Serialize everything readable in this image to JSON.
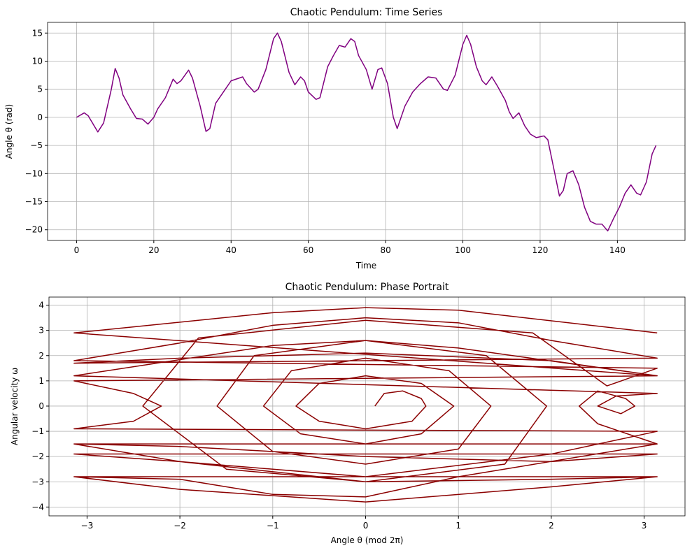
{
  "chart_data": [
    {
      "type": "line",
      "title": "Chaotic Pendulum: Time Series",
      "x_label": "Time",
      "y_label": "Angle θ (rad)",
      "x": [
        0,
        2,
        3,
        5.5,
        7,
        9,
        10,
        11,
        12,
        14,
        15.5,
        17,
        18.5,
        20,
        21,
        23,
        25,
        26,
        27,
        29,
        30,
        32,
        33.5,
        34.5,
        36,
        38,
        40,
        43,
        44,
        46,
        47,
        49,
        51,
        52,
        53,
        55,
        56.5,
        58,
        59,
        60,
        62,
        63,
        65,
        66.5,
        68,
        69.5,
        71,
        72,
        73,
        75,
        76.5,
        78,
        79,
        80.5,
        82,
        83,
        85,
        87,
        89,
        91,
        93,
        95,
        96,
        98,
        100,
        101,
        102,
        103.5,
        105,
        106,
        107.5,
        109,
        111,
        112,
        113,
        114.5,
        116,
        117.5,
        119,
        121,
        122,
        123.5,
        125,
        126,
        127,
        128.5,
        130,
        131.5,
        133,
        134.5,
        136,
        137.5,
        139,
        140.5,
        142,
        143.5,
        145,
        146,
        147.5,
        149,
        150
      ],
      "values": [
        0,
        0.8,
        0.3,
        -2.6,
        -1,
        5,
        8.7,
        7,
        4,
        1.5,
        -0.2,
        -0.3,
        -1.2,
        0,
        1.5,
        3.5,
        6.8,
        6,
        6.5,
        8.4,
        7,
        2,
        -2.5,
        -2,
        2.5,
        4.5,
        6.5,
        7.2,
        6,
        4.5,
        5,
        8.5,
        14,
        15,
        13.5,
        8,
        5.8,
        7.2,
        6.5,
        4.5,
        3.2,
        3.5,
        9,
        11,
        12.8,
        12.5,
        14,
        13.5,
        11,
        8.5,
        5,
        8.5,
        8.8,
        6,
        0,
        -2,
        2,
        4.5,
        6,
        7.2,
        7,
        5,
        4.8,
        7.5,
        13,
        14.6,
        13,
        9,
        6.5,
        5.8,
        7.2,
        5.5,
        3,
        1,
        -0.2,
        0.8,
        -1.5,
        -3,
        -3.6,
        -3.3,
        -4,
        -9,
        -14,
        -13,
        -10,
        -9.5,
        -12,
        -16,
        -18.5,
        -19,
        -19,
        -20.2,
        -18,
        -16,
        -13.5,
        -12,
        -13.5,
        -13.8,
        -11.5,
        -6.5,
        -5
      ],
      "color": "#800080",
      "xlim": [
        -7.5,
        157.5
      ],
      "ylim": [
        -21.9,
        16.9
      ],
      "xticks": [
        0,
        20,
        40,
        60,
        80,
        100,
        120,
        140
      ],
      "yticks": [
        {
          "value": -20,
          "label": "−20"
        },
        {
          "value": -15,
          "label": "−15"
        },
        {
          "value": -10,
          "label": "−10"
        },
        {
          "value": -5,
          "label": "−5"
        },
        0,
        5,
        10,
        15
      ],
      "grid": true
    },
    {
      "type": "line",
      "title": "Chaotic Pendulum: Phase Portrait",
      "x_label": "Angle θ (mod 2π)",
      "y_label": "Angular velocity ω",
      "x": [
        0.1,
        0.2,
        0.4,
        0.6,
        0.65,
        0.5,
        0,
        -0.5,
        -0.75,
        -0.5,
        0,
        0.6,
        0.95,
        0.6,
        0,
        -0.7,
        -1.1,
        -0.8,
        0,
        0.9,
        1.35,
        1,
        0,
        -1,
        -1.6,
        -1.2,
        0,
        1.3,
        1.95,
        1.5,
        0,
        -1.5,
        -2.4,
        -1.8,
        0,
        1.8,
        2.6,
        3.14,
        -3.14,
        -2,
        -1,
        0,
        1,
        2,
        3.14,
        -3.14,
        -2,
        0,
        2,
        3.14,
        -3.14,
        -2.5,
        -2.2,
        -2.5,
        -3.14,
        3.14,
        2,
        0,
        -2,
        -3.14,
        3.14,
        1,
        0,
        -1,
        -2,
        -3.14,
        3.14,
        2,
        0,
        -2,
        -3.14,
        3.14,
        2,
        0,
        -2,
        -3.14,
        3.14,
        2,
        0,
        -2,
        -3.14,
        3.14,
        2.5,
        2.3,
        2.5,
        2.8,
        2.9,
        2.75,
        2.5,
        2.7,
        3.14,
        -3.14,
        -1,
        0,
        1,
        3.14,
        -3.14,
        -1,
        0,
        1,
        3.14
      ],
      "values": [
        0,
        0.5,
        0.6,
        0.3,
        0,
        -0.6,
        -0.9,
        -0.6,
        0,
        0.9,
        1.2,
        0.9,
        0,
        -1.1,
        -1.5,
        -1.1,
        0,
        1.4,
        1.9,
        1.4,
        0,
        -1.7,
        -2.3,
        -1.8,
        0,
        2,
        2.6,
        2,
        0,
        -2.3,
        -3,
        -2.5,
        0,
        2.7,
        3.4,
        2.9,
        0.8,
        1.5,
        1.8,
        2.5,
        3.2,
        3.5,
        3.3,
        2.6,
        1.9,
        1.7,
        1.9,
        2.1,
        1.8,
        1.2,
        1,
        0.5,
        0,
        -0.6,
        -0.9,
        -1,
        -1.9,
        -2.8,
        -2.2,
        -1.5,
        -1.5,
        -2.8,
        -3.6,
        -3.5,
        -2.9,
        -2.8,
        -2.8,
        -3.2,
        -3.8,
        -3.3,
        -2.8,
        -2.8,
        -2.9,
        -3,
        -2.2,
        -1.9,
        -1.9,
        -2.2,
        -2,
        -1.6,
        -1.5,
        -1.5,
        -0.7,
        0,
        0.6,
        0.3,
        0,
        -0.3,
        0,
        0.4,
        0.5,
        1.2,
        2.4,
        2.6,
        2.3,
        1.2,
        2.9,
        3.7,
        3.9,
        3.8,
        2.9
      ],
      "color": "#8b0000",
      "xlim": [
        -3.41,
        3.44
      ],
      "ylim": [
        -4.35,
        4.32
      ],
      "xticks": [
        {
          "value": -3,
          "label": "−3"
        },
        {
          "value": -2,
          "label": "−2"
        },
        {
          "value": -1,
          "label": "−1"
        },
        0,
        1,
        2,
        3
      ],
      "yticks": [
        {
          "value": -4,
          "label": "−4"
        },
        {
          "value": -3,
          "label": "−3"
        },
        {
          "value": -2,
          "label": "−2"
        },
        {
          "value": -1,
          "label": "−1"
        },
        0,
        1,
        2,
        3,
        4
      ],
      "grid": true
    }
  ]
}
